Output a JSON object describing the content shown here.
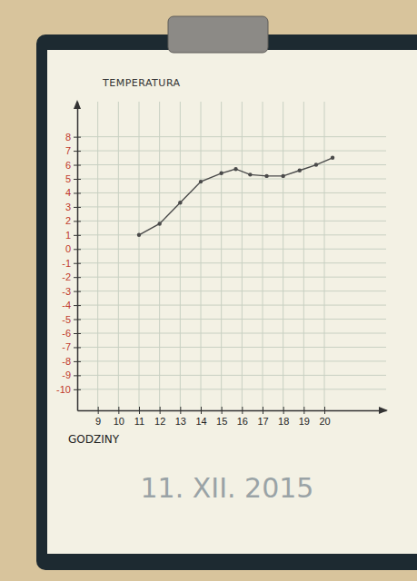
{
  "chart_data": {
    "type": "line",
    "y_label": "TEMPERATURA",
    "x_label": "GODZINY",
    "annotations": [
      "11. XII. 2015"
    ],
    "x": [
      11,
      12,
      13,
      14,
      15,
      15.7,
      16.4,
      17.2,
      18,
      18.8,
      19.6,
      20.4
    ],
    "values": [
      1.0,
      1.8,
      3.3,
      4.8,
      5.4,
      5.7,
      5.3,
      5.2,
      5.2,
      5.6,
      6.0,
      6.5
    ],
    "color": "#4a4a4a",
    "marker": "circle",
    "line_style": "solid",
    "xlim": [
      8,
      23
    ],
    "ylim": [
      -11.5,
      10.5
    ],
    "xticks": [
      9,
      10,
      11,
      12,
      13,
      14,
      15,
      16,
      17,
      18,
      19,
      20
    ],
    "yticks": [
      -10,
      -9,
      -8,
      -7,
      -6,
      -5,
      -4,
      -3,
      -2,
      -1,
      0,
      1,
      2,
      3,
      4,
      5,
      6,
      7,
      8
    ],
    "grid": true
  }
}
